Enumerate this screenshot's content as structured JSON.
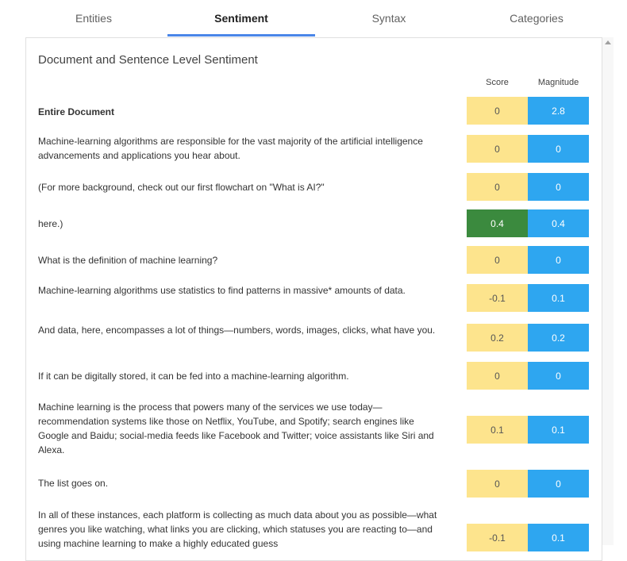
{
  "tabs": [
    {
      "label": "Entities"
    },
    {
      "label": "Sentiment"
    },
    {
      "label": "Syntax"
    },
    {
      "label": "Categories"
    }
  ],
  "active_tab": "Sentiment",
  "panel": {
    "title": "Document and Sentence Level Sentiment",
    "score_header": "Score",
    "magnitude_header": "Magnitude"
  },
  "rows": [
    {
      "text": "Entire Document",
      "score": "0",
      "magnitude": "2.8"
    },
    {
      "text": "Machine-learning algorithms are responsible for the vast majority of the artificial intelligence advancements and applications you hear about.",
      "score": "0",
      "magnitude": "0"
    },
    {
      "text": "(For more background, check out our first flowchart on \"What is AI?\"",
      "score": "0",
      "magnitude": "0"
    },
    {
      "text": "here.)",
      "score": "0.4",
      "magnitude": "0.4"
    },
    {
      "text": "What is the definition of machine learning?",
      "score": "0",
      "magnitude": "0"
    },
    {
      "text": "Machine-learning algorithms use statistics to find patterns in massive* amounts of data.",
      "score": "-0.1",
      "magnitude": "0.1"
    },
    {
      "text": "And data, here, encompasses a lot of things—numbers, words, images, clicks, what have you.",
      "score": "0.2",
      "magnitude": "0.2"
    },
    {
      "text": "If it can be digitally stored, it can be fed into a machine-learning algorithm.",
      "score": "0",
      "magnitude": "0"
    },
    {
      "text": "Machine learning is the process that powers many of the services we use today—recommendation systems like those on Netflix, YouTube, and Spotify; search engines like Google and Baidu; social-media feeds like Facebook and Twitter; voice assistants like Siri and Alexa.",
      "score": "0.1",
      "magnitude": "0.1"
    },
    {
      "text": "The list goes on.",
      "score": "0",
      "magnitude": "0"
    },
    {
      "text": "In all of these instances, each platform is collecting as much data about you as possible—what genres you like watching, what links you are clicking, which statuses you are reacting to—and using machine learning to make a highly educated guess",
      "score": "-0.1",
      "magnitude": "0.1"
    }
  ],
  "colors": {
    "tab_indicator": "#4a86e8",
    "score_neutral": "#fde48d",
    "score_positive": "#3b8a3e",
    "magnitude": "#2ea6f0"
  }
}
